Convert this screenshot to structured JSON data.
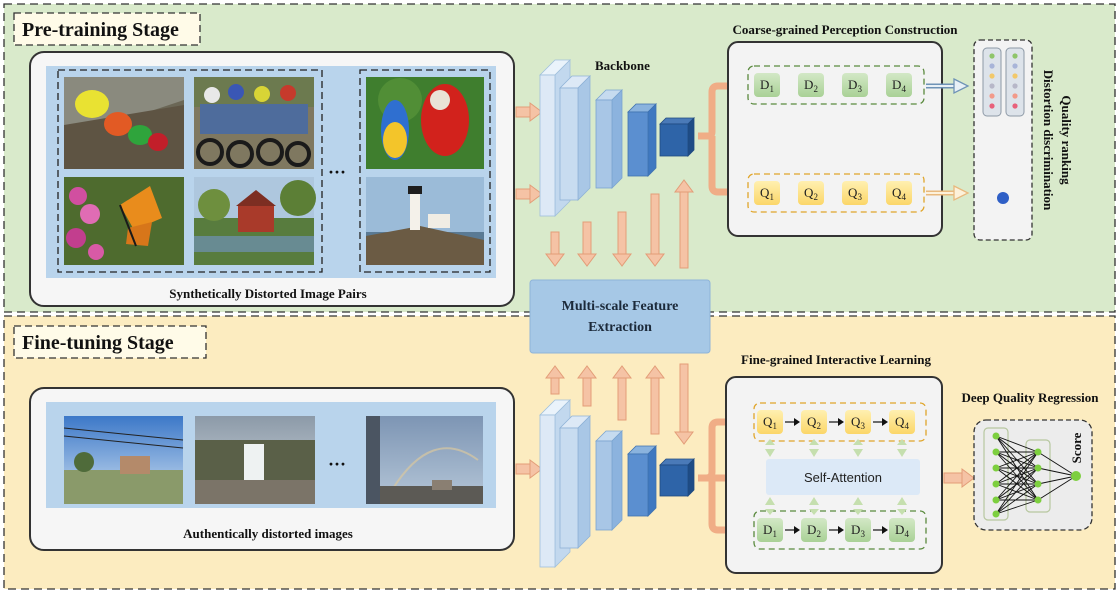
{
  "pretraining": {
    "title": "Pre-training Stage",
    "image_caption": "Synthetically Distorted Image Pairs",
    "ellipsis": "···",
    "coarse_title": "Coarse-grained Perception Construction",
    "d_tokens": [
      "D1",
      "D2",
      "D3",
      "D4"
    ],
    "q_tokens": [
      "Q1",
      "Q2",
      "Q3",
      "Q4"
    ],
    "side_label_1": "Distortion discrimination",
    "side_label_2": "Quality ranking"
  },
  "backbone_label": "Backbone",
  "msfe": {
    "line1": "Multi-scale Feature",
    "line2": "Extraction"
  },
  "finetuning": {
    "title": "Fine-tuning Stage",
    "image_caption": "Authentically distorted images",
    "ellipsis": "···",
    "fine_title": "Fine-grained Interactive Learning",
    "q_tokens": [
      "Q1",
      "Q2",
      "Q3",
      "Q4"
    ],
    "d_tokens": [
      "D1",
      "D2",
      "D3",
      "D4"
    ],
    "self_attention": "Self-Attention",
    "regression_title": "Deep Quality Regression",
    "score_label": "Score"
  },
  "colors": {
    "pretrain_bg": "#d9eacb",
    "finetune_bg": "#fcecc0",
    "panel_blue": "#b9d4ec",
    "d_token": "#b7d8a7",
    "q_token": "#fde07f",
    "arrow": "#f5c3a5",
    "msfe_box": "#a6c8e6",
    "net_green": "#7dcf3f",
    "dot_blue": "#2f5fc6"
  }
}
